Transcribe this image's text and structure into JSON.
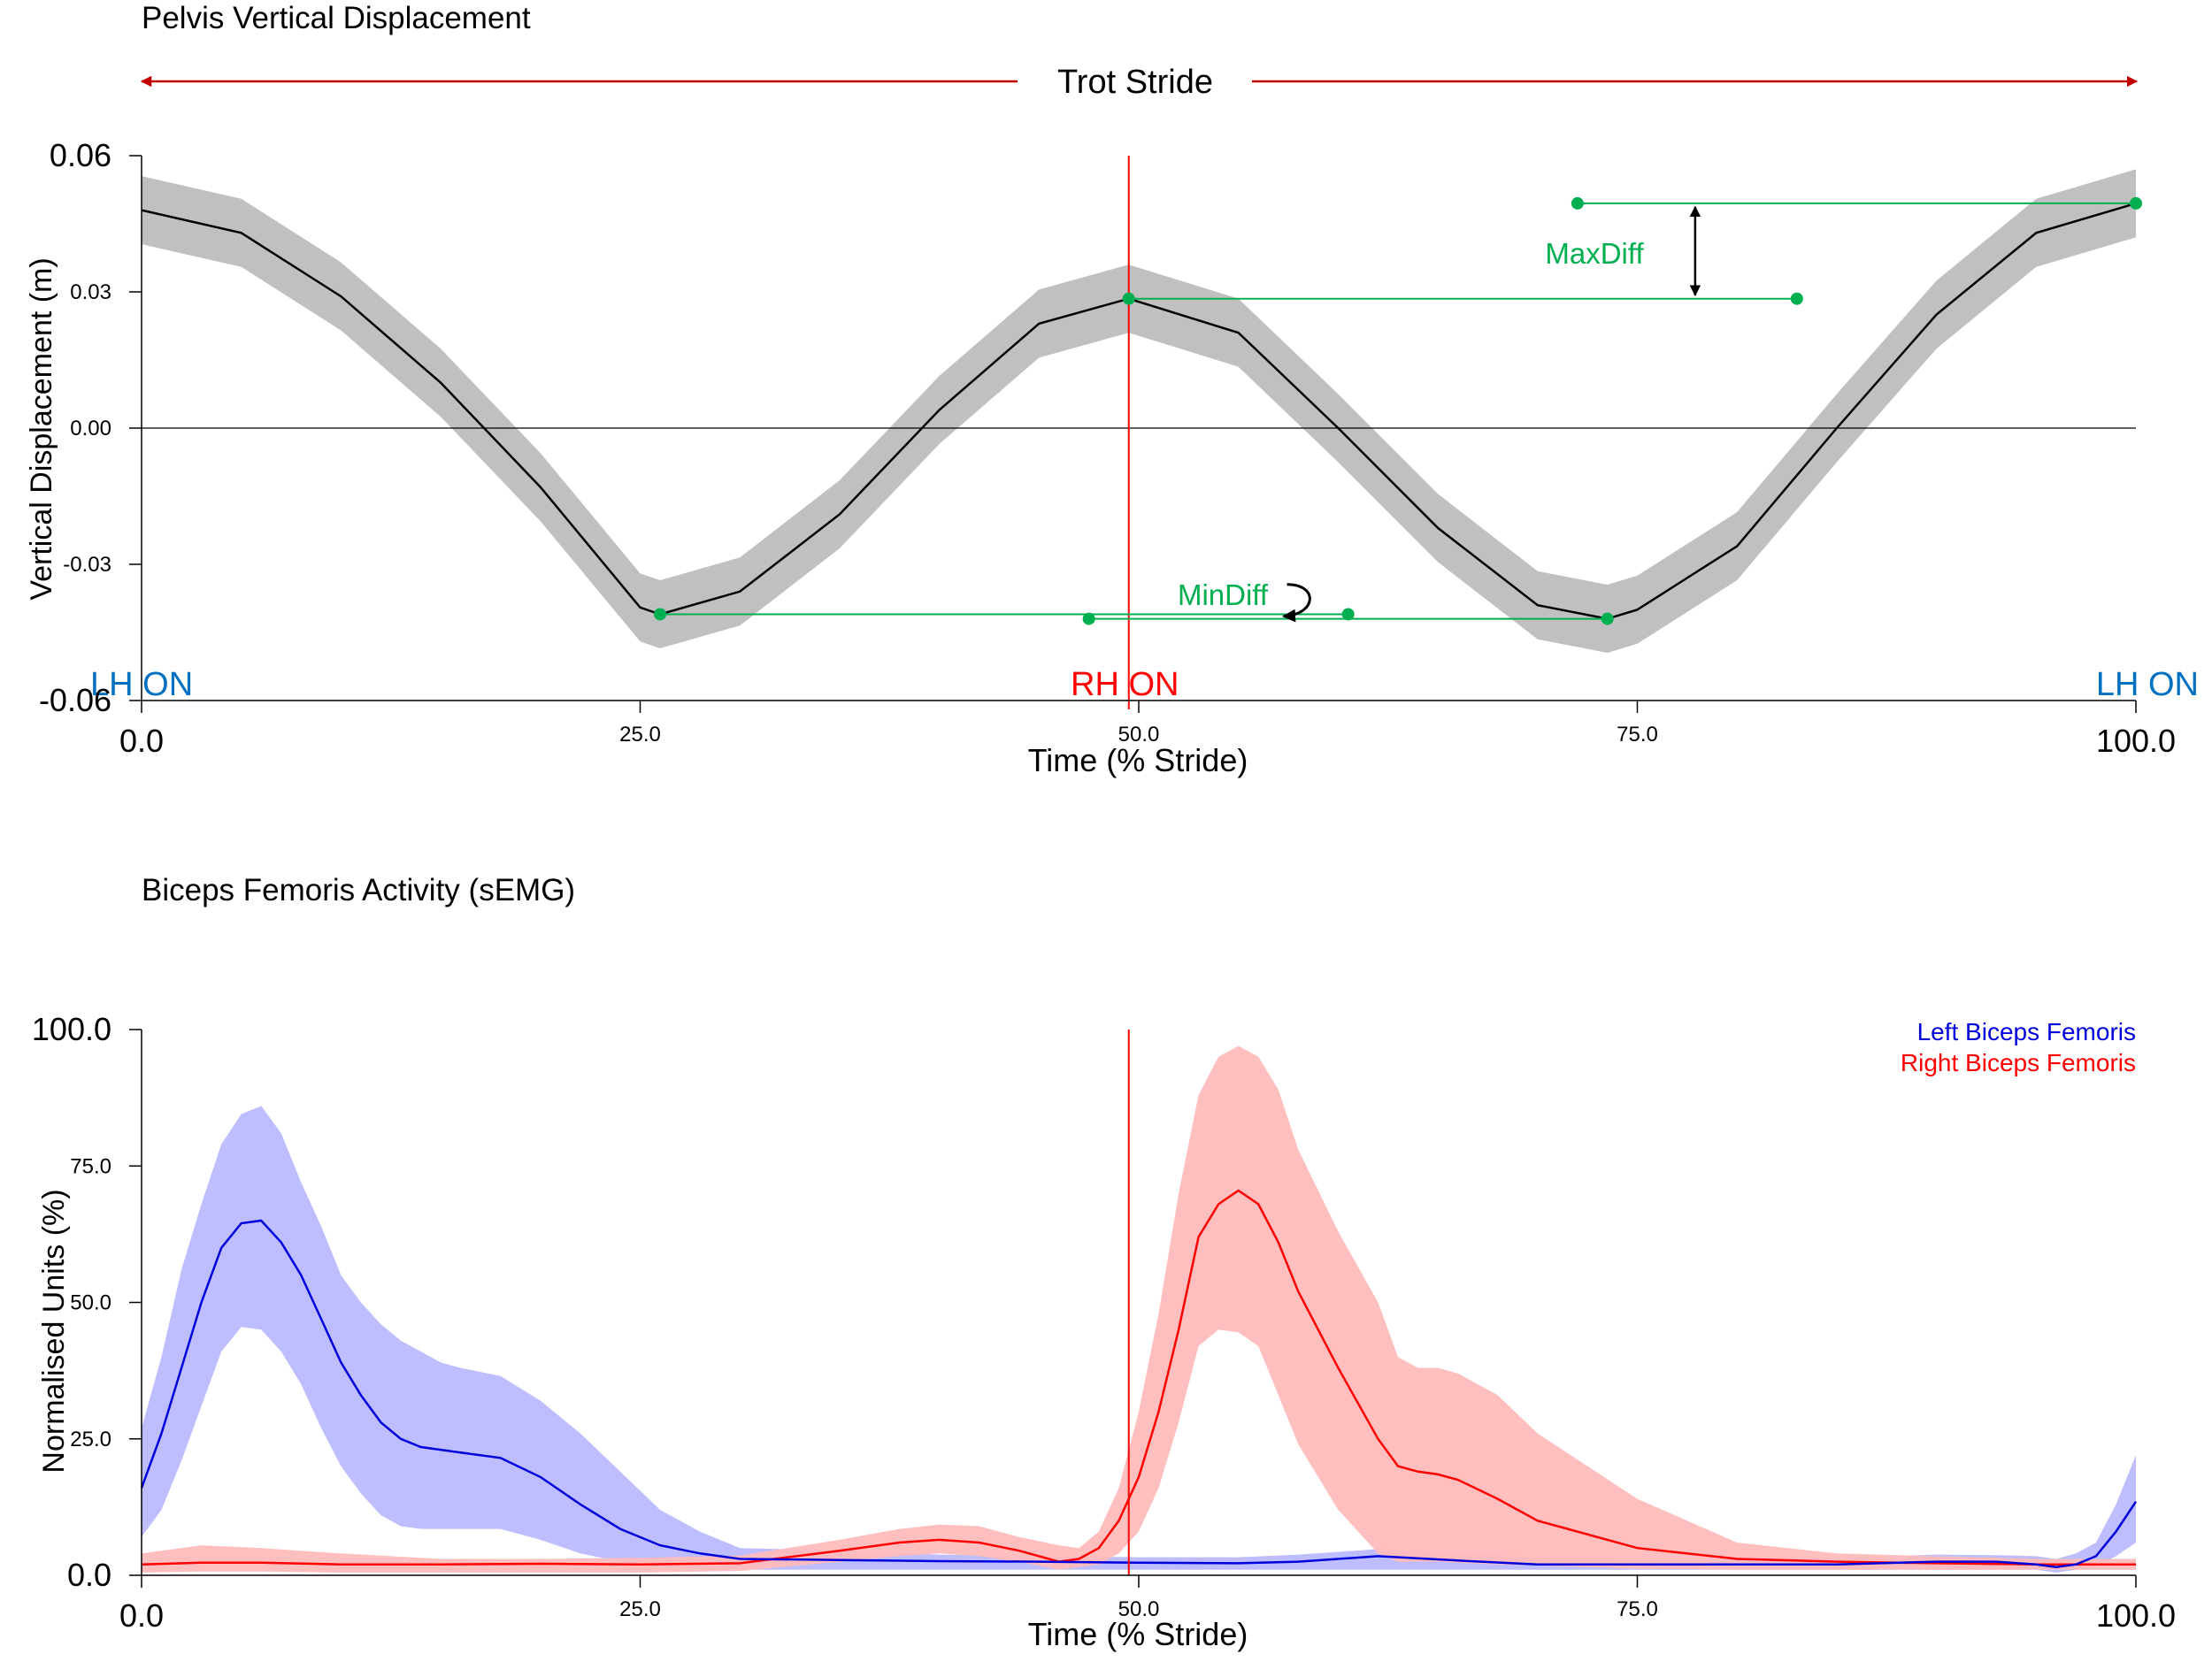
{
  "chart_data": [
    {
      "type": "line",
      "title": "Pelvis Vertical Displacement",
      "banner": "Trot Stride",
      "xlabel": "Time (% Stride)",
      "ylabel": "Vertical Displacement (m)",
      "xlim": [
        0,
        100
      ],
      "ylim": [
        -0.06,
        0.06
      ],
      "x_ticks": [
        0,
        25,
        50,
        75,
        100
      ],
      "x_tick_labels": [
        "0.0",
        "25.0",
        "50.0",
        "75.0",
        "100.0"
      ],
      "y_ticks": [
        0.06,
        0.03,
        0.0,
        -0.03,
        -0.06
      ],
      "y_tick_labels": [
        "0.06",
        "0.03",
        "0.00",
        "-0.03",
        "-0.06"
      ],
      "grid": false,
      "zero_line": true,
      "band_color": "#c0c0c0",
      "line_color": "#000000",
      "marker_color": "#00b050",
      "series": [
        {
          "band_half_width": 0.0075,
          "x": [
            0,
            5,
            10,
            15,
            20,
            25,
            26,
            30,
            35,
            40,
            45,
            49.5,
            55,
            60,
            65,
            70,
            73.5,
            75,
            80,
            85,
            90,
            95,
            100
          ],
          "values": [
            0.048,
            0.043,
            0.029,
            0.01,
            -0.013,
            -0.0395,
            -0.041,
            -0.036,
            -0.019,
            0.004,
            0.023,
            0.0285,
            0.021,
            0.0,
            -0.022,
            -0.039,
            -0.042,
            -0.04,
            -0.026,
            0.0,
            0.025,
            0.043,
            0.0495
          ]
        }
      ],
      "event_line": {
        "x": 49.5,
        "color": "#ff0000"
      },
      "events": [
        {
          "label": "LH ON",
          "x": 0,
          "color": "#0070c0"
        },
        {
          "label": "RH ON",
          "x": 49.5,
          "color": "#ff0000"
        },
        {
          "label": "LH ON",
          "x": 100,
          "color": "#0070c0"
        }
      ],
      "annotations": [
        {
          "label": "MaxDiff",
          "x": 73,
          "y": 0.039
        },
        {
          "label": "MinDiff",
          "x": 55.5,
          "y": -0.036
        }
      ],
      "markers": [
        {
          "x1": 72,
          "y1": 0.0495,
          "x2": 100,
          "y2": 0.0495
        },
        {
          "x1": 49.5,
          "y1": 0.0285,
          "x2": 83,
          "y2": 0.0285
        },
        {
          "x1": 26,
          "y1": -0.041,
          "x2": 60.5,
          "y2": -0.041
        },
        {
          "x1": 47.5,
          "y1": -0.042,
          "x2": 73.5,
          "y2": -0.042
        }
      ]
    },
    {
      "type": "area",
      "title": "Biceps Femoris Activity (sEMG)",
      "xlabel": "Time (% Stride)",
      "ylabel": "Normalised Units (%)",
      "xlim": [
        0,
        100
      ],
      "ylim": [
        0,
        100
      ],
      "x_ticks": [
        0,
        25,
        50,
        75,
        100
      ],
      "x_tick_labels": [
        "0.0",
        "25.0",
        "50.0",
        "75.0",
        "100.0"
      ],
      "y_ticks": [
        100,
        75,
        50,
        25,
        0
      ],
      "y_tick_labels": [
        "100.0",
        "75.0",
        "50.0",
        "25.0",
        "0.0"
      ],
      "grid": false,
      "legend": "top-right",
      "event_line": {
        "x": 49.5,
        "color": "#ff0000"
      },
      "series": [
        {
          "name": "Left Biceps Femoris",
          "color": "#0000dd",
          "band_color": "#b9b9ff",
          "x": [
            0,
            1,
            2,
            3,
            4,
            5,
            6,
            7,
            8,
            9,
            10,
            11,
            12,
            13,
            14,
            15,
            16,
            18,
            20,
            22,
            24,
            26,
            28,
            30,
            35,
            40,
            45,
            50,
            55,
            58,
            62,
            66,
            70,
            75,
            80,
            85,
            90,
            93,
            95,
            96,
            97,
            98,
            99,
            100
          ],
          "values": [
            16,
            26,
            38,
            50,
            60,
            64.5,
            65,
            61,
            55,
            47,
            39,
            33,
            28,
            25,
            23.5,
            23,
            22.5,
            21.5,
            18,
            13,
            8.5,
            5.5,
            4,
            3,
            2.8,
            2.6,
            2.5,
            2.3,
            2.2,
            2.5,
            3.5,
            2.7,
            2,
            2,
            2,
            2,
            2.5,
            2.5,
            2,
            1.5,
            2,
            3.5,
            8,
            13.5
          ],
          "lower": [
            7,
            12,
            21,
            31,
            41,
            45.5,
            45,
            41,
            35,
            27,
            20,
            15,
            11,
            9,
            8.5,
            8.5,
            8.5,
            8.5,
            6.5,
            4,
            2.5,
            1.5,
            1,
            1,
            1,
            1,
            1,
            1,
            1,
            1,
            1,
            1,
            1,
            1,
            1,
            1,
            1,
            1,
            1,
            0.5,
            1,
            1.5,
            3.5,
            6
          ],
          "upper": [
            27,
            40,
            56,
            68,
            79,
            84.5,
            86,
            81,
            72,
            64,
            55,
            50,
            46,
            43,
            41,
            39,
            38,
            36.5,
            32,
            26,
            19,
            12,
            8,
            5,
            4.5,
            3.8,
            3.5,
            3.3,
            3.3,
            3.8,
            4.8,
            4.2,
            3.2,
            3,
            3,
            3.2,
            3.8,
            3.7,
            3.5,
            3,
            4,
            6,
            13,
            22
          ]
        },
        {
          "name": "Right Biceps Femoris",
          "color": "#ff0000",
          "band_color": "#ffbcbc",
          "x": [
            0,
            3,
            6,
            10,
            15,
            20,
            25,
            30,
            35,
            38,
            40,
            42,
            44,
            46,
            47,
            48,
            49,
            50,
            51,
            52,
            53,
            54,
            55,
            56,
            57,
            58,
            60,
            62,
            63,
            64,
            65,
            66,
            68,
            70,
            75,
            80,
            85,
            90,
            95,
            100
          ],
          "values": [
            2,
            2.3,
            2.3,
            2,
            2,
            2.1,
            2,
            2.2,
            4.5,
            6,
            6.5,
            6,
            4.5,
            2.5,
            3,
            5,
            10,
            18,
            30,
            45,
            62,
            68,
            70.5,
            68,
            61,
            52,
            38,
            25,
            20,
            19,
            18.5,
            17.5,
            14,
            10,
            5,
            3,
            2.5,
            2.2,
            2,
            2
          ],
          "lower": [
            0.5,
            0.7,
            0.7,
            0.5,
            0.5,
            0.5,
            0.5,
            0.8,
            2.5,
            3.5,
            4,
            3.5,
            2.5,
            1,
            1.5,
            2,
            4,
            8,
            16,
            28,
            42,
            45,
            44.5,
            42,
            33,
            24,
            12,
            4,
            2.5,
            2.5,
            2.5,
            2.3,
            2,
            1.8,
            1.2,
            1,
            1,
            1,
            1,
            1
          ],
          "upper": [
            4,
            5.5,
            5,
            4,
            3,
            3,
            3.2,
            3.6,
            6.5,
            8.5,
            9.3,
            9,
            7,
            5.5,
            5,
            8,
            16,
            30,
            48,
            70,
            88,
            95,
            97,
            95,
            89,
            78,
            63,
            50,
            40,
            38,
            38,
            37,
            33,
            26,
            14,
            6,
            4,
            3.5,
            3,
            3
          ]
        }
      ]
    }
  ]
}
